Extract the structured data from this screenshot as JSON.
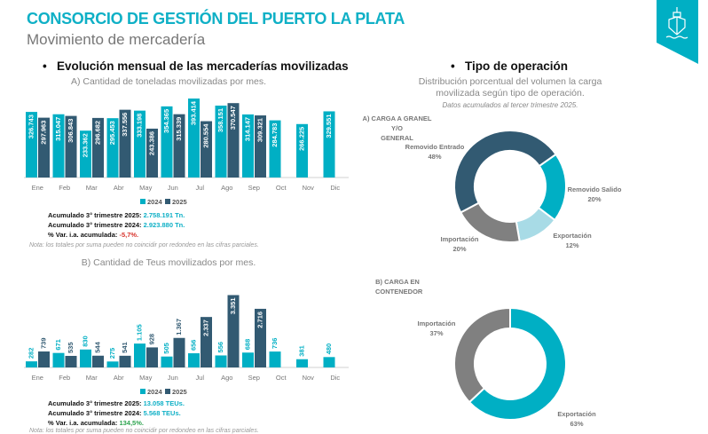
{
  "header": {
    "title": "CONSORCIO DE GESTIÓN DEL PUERTO LA PLATA",
    "subtitle": "Movimiento de mercadería"
  },
  "left": {
    "section_title": "Evolución mensual de las mercaderías movilizadas",
    "chart_a_title": "A) Cantidad de toneladas movilizadas por mes.",
    "chart_b_title": "B) Cantidad de Teus movilizados por mes.",
    "acc_a": [
      {
        "label": "Acumulado 3° trimestre 2025: ",
        "value": "2.758.191 Tn."
      },
      {
        "label": "Acumulado 3° trimestre 2024: ",
        "value": "2.923.880 Tn."
      },
      {
        "label": "% Var. i.a. acumulada: ",
        "value": "-5,7%."
      }
    ],
    "acc_b": [
      {
        "label": "Acumulado 3° trimestre 2025: ",
        "value": "13.058 TEUs."
      },
      {
        "label": "Acumulado 3° trimestre 2024: ",
        "value": "5.568 TEUs."
      },
      {
        "label": "% Var. i.a. acumulada: ",
        "value": "134,5%."
      }
    ],
    "note": "Nota: los totales por suma pueden no coincidir por redondeo en las cifras parciales."
  },
  "right": {
    "section_title": "Tipo de operación",
    "desc1": "Distribución porcentual del volumen la carga",
    "desc2": "movilizada según tipo de operación.",
    "desc3": "Datos acumulados al tercer trimestre 2025.",
    "donut_a_title1": "A) CARGA A GRANEL Y/O",
    "donut_a_title2": "GENERAL",
    "donut_b_title1": "B) CARGA EN",
    "donut_b_title2": "CONTENEDOR"
  },
  "colors": {
    "y2024": "#00afc4",
    "y2025": "#325a72",
    "removido_salido": "#00afc4",
    "exportacion_a": "#a8dbe6",
    "importacion": "#808080",
    "removido_entrado": "#325a72"
  },
  "chart_data": [
    {
      "type": "bar",
      "title": "A) Cantidad de toneladas movilizadas por mes.",
      "categories": [
        "Ene",
        "Feb",
        "Mar",
        "Abr",
        "May",
        "Jun",
        "Jul",
        "Ago",
        "Sep",
        "Oct",
        "Nov",
        "Dic"
      ],
      "series": [
        {
          "name": "2024",
          "values": [
            326743,
            315047,
            233362,
            295453,
            333198,
            354365,
            393414,
            358151,
            314147,
            284783,
            266225,
            329551
          ],
          "labels": [
            "326.743",
            "315.047",
            "233.362",
            "295.453",
            "333.198",
            "354.365",
            "393.414",
            "358.151",
            "314.147",
            "284.783",
            "266.225",
            "329.551"
          ]
        },
        {
          "name": "2025",
          "values": [
            297963,
            306843,
            296682,
            337556,
            243386,
            315339,
            280554,
            370547,
            309321,
            null,
            null,
            null
          ],
          "labels": [
            "297.963",
            "306.843",
            "296.682",
            "337.556",
            "243.386",
            "315.339",
            "280.554",
            "370.547",
            "309.321",
            null,
            null,
            null
          ]
        }
      ],
      "ylim": [
        0,
        420000
      ],
      "legend": "bottom"
    },
    {
      "type": "bar",
      "title": "B) Cantidad de Teus movilizados por mes.",
      "categories": [
        "Ene",
        "Feb",
        "Mar",
        "Abr",
        "May",
        "Jun",
        "Jul",
        "Ago",
        "Sep",
        "Oct",
        "Nov",
        "Dic"
      ],
      "series": [
        {
          "name": "2024",
          "values": [
            282,
            671,
            830,
            275,
            1105,
            505,
            656,
            556,
            688,
            736,
            381,
            480
          ],
          "labels": [
            "282",
            "671",
            "830",
            "275",
            "1.105",
            "505",
            "656",
            "556",
            "688",
            "736",
            "381",
            "480"
          ]
        },
        {
          "name": "2025",
          "values": [
            739,
            535,
            544,
            541,
            928,
            1367,
            2337,
            3351,
            2716,
            null,
            null,
            null
          ],
          "labels": [
            "739",
            "535",
            "544",
            "541",
            "928",
            "1.367",
            "2.337",
            "3.351",
            "2.716",
            null,
            null,
            null
          ]
        }
      ],
      "ylim": [
        0,
        3700
      ],
      "legend": "bottom"
    },
    {
      "type": "pie",
      "title": "A) CARGA A GRANEL Y/O GENERAL",
      "slices": [
        {
          "label": "Removido Salido",
          "value": 20,
          "text": "20%"
        },
        {
          "label": "Exportación",
          "value": 12,
          "text": "12%"
        },
        {
          "label": "Importación",
          "value": 20,
          "text": "20%"
        },
        {
          "label": "Removido Entrado",
          "value": 48,
          "text": "48%"
        }
      ]
    },
    {
      "type": "pie",
      "title": "B) CARGA EN CONTENEDOR",
      "slices": [
        {
          "label": "Exportación",
          "value": 63,
          "text": "63%"
        },
        {
          "label": "Importación",
          "value": 37,
          "text": "37%"
        }
      ]
    }
  ]
}
